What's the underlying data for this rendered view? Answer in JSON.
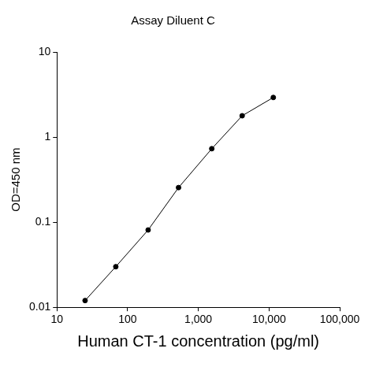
{
  "chart_data": {
    "type": "line",
    "title": "Assay Diluent C",
    "x_label": "Human CT-1 concentration (pg/ml)",
    "y_label": "OD=450 nm",
    "log": true,
    "grid": false,
    "marker": "circle",
    "line_style": "solid",
    "series": [
      {
        "name": "Assay Diluent C",
        "color": "#000000",
        "x": [
          25,
          68,
          195,
          525,
          1550,
          4170,
          11500
        ],
        "values": [
          0.012,
          0.03,
          0.081,
          0.255,
          0.73,
          1.78,
          2.92
        ]
      }
    ],
    "xlim": [
      10,
      100000
    ],
    "xticks": [
      10,
      100,
      {
        "value": 1000,
        "label": "1,000"
      },
      {
        "value": 10000,
        "label": "10,000"
      },
      {
        "value": 100000,
        "label": "100,000"
      }
    ],
    "ylim": [
      0.01,
      10
    ],
    "yticks": [
      0.01,
      0.1,
      1,
      10
    ]
  }
}
